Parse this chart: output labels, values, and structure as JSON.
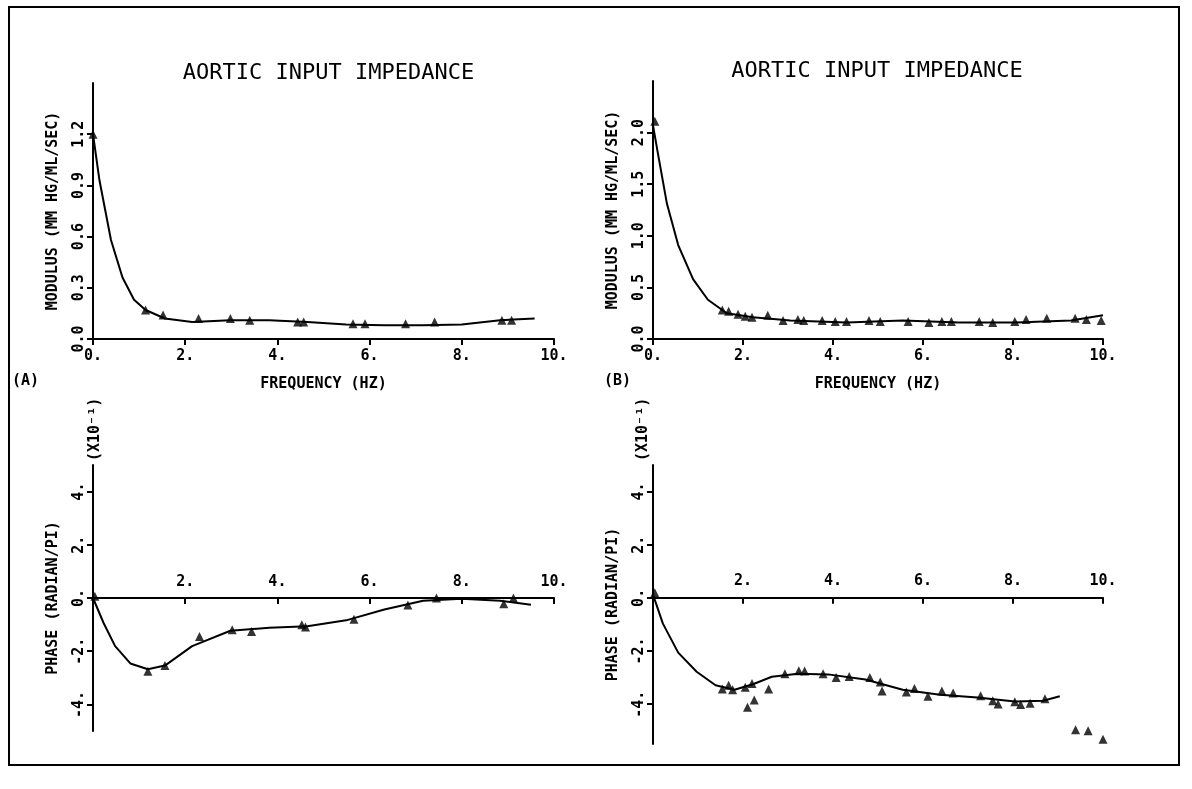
{
  "chart_data": [
    {
      "type": "scatter",
      "title": "AORTIC INPUT IMPEDANCE",
      "xlabel": "FREQUENCY (HZ)",
      "ylabel": "MODULUS (MM HG/ML/SEC)",
      "marker": "triangle",
      "annotations": [
        "(A)"
      ],
      "xlim": [
        0,
        10
      ],
      "xticks": [
        {
          "value": 0,
          "label": "0."
        },
        {
          "value": 2,
          "label": "2."
        },
        {
          "value": 4,
          "label": "4."
        },
        {
          "value": 6,
          "label": "6."
        },
        {
          "value": 8,
          "label": "8."
        },
        {
          "value": 10,
          "label": "10."
        }
      ],
      "ylim": [
        0,
        1.5
      ],
      "yticks": [
        {
          "value": 0,
          "label": "0.0"
        },
        {
          "value": 0.3,
          "label": "0.3"
        },
        {
          "value": 0.6,
          "label": "0.6"
        },
        {
          "value": 0.9,
          "label": "0.9"
        },
        {
          "value": 1.2,
          "label": "1.2"
        }
      ],
      "series": [
        {
          "color": "#000000",
          "x": [
            0,
            1.14,
            1.52,
            2.29,
            2.98,
            3.4,
            4.44,
            4.57,
            5.64,
            5.9,
            6.78,
            7.41,
            8.87,
            9.08
          ],
          "values": [
            1.2,
            0.17,
            0.14,
            0.12,
            0.12,
            0.11,
            0.1,
            0.1,
            0.09,
            0.09,
            0.09,
            0.1,
            0.11,
            0.11
          ]
        },
        {
          "type": "line",
          "marker": "none",
          "color": "#000000",
          "x": [
            0,
            0.14,
            0.39,
            0.64,
            0.89,
            1.14,
            1.56,
            2.15,
            2.98,
            3.82,
            4.65,
            5.49,
            6.32,
            7.16,
            8.0,
            8.83,
            9.58
          ],
          "values": [
            1.2,
            0.93,
            0.58,
            0.36,
            0.23,
            0.17,
            0.12,
            0.1,
            0.11,
            0.11,
            0.1,
            0.085,
            0.08,
            0.08,
            0.085,
            0.11,
            0.12
          ]
        }
      ]
    },
    {
      "type": "scatter",
      "title": "AORTIC INPUT IMPEDANCE",
      "xlabel": "FREQUENCY (HZ)",
      "ylabel": "MODULUS (MM HG/ML/SEC)",
      "marker": "triangle",
      "annotations": [
        "(B)"
      ],
      "xlim": [
        0,
        10
      ],
      "xticks": [
        {
          "value": 0,
          "label": "0."
        },
        {
          "value": 2,
          "label": "2."
        },
        {
          "value": 4,
          "label": "4."
        },
        {
          "value": 6,
          "label": "6."
        },
        {
          "value": 8,
          "label": "8."
        },
        {
          "value": 10,
          "label": "10."
        }
      ],
      "ylim": [
        0,
        2.5
      ],
      "yticks": [
        {
          "value": 0,
          "label": "0.0"
        },
        {
          "value": 0.5,
          "label": "0.5"
        },
        {
          "value": 1,
          "label": "1.0"
        },
        {
          "value": 1.5,
          "label": "1.5"
        },
        {
          "value": 2,
          "label": "2.0"
        }
      ],
      "series": [
        {
          "color": "#000000",
          "x": [
            0.04,
            1.54,
            1.68,
            1.89,
            2.05,
            2.2,
            2.55,
            2.89,
            3.22,
            3.35,
            3.76,
            4.05,
            4.3,
            4.8,
            5.05,
            5.67,
            6.13,
            6.42,
            6.63,
            7.25,
            7.55,
            8.04,
            8.29,
            8.75,
            9.38,
            9.63,
            9.96
          ],
          "values": [
            2.11,
            0.28,
            0.27,
            0.24,
            0.22,
            0.21,
            0.23,
            0.18,
            0.19,
            0.18,
            0.18,
            0.17,
            0.17,
            0.18,
            0.17,
            0.17,
            0.16,
            0.17,
            0.17,
            0.17,
            0.16,
            0.17,
            0.19,
            0.2,
            0.2,
            0.19,
            0.18
          ]
        },
        {
          "type": "line",
          "marker": "none",
          "color": "#000000",
          "x": [
            0,
            0.1,
            0.31,
            0.56,
            0.89,
            1.22,
            1.64,
            2.22,
            3.05,
            4.3,
            5.55,
            6.8,
            8.04,
            9.29,
            10
          ],
          "values": [
            2.07,
            1.82,
            1.31,
            0.91,
            0.58,
            0.38,
            0.25,
            0.21,
            0.18,
            0.16,
            0.18,
            0.16,
            0.16,
            0.18,
            0.23
          ]
        }
      ]
    },
    {
      "type": "scatter",
      "ylabel": "PHASE (RADIAN/PI)",
      "marker": "triangle",
      "annotations": [
        "(X10⁻¹)"
      ],
      "xlim": [
        0,
        10
      ],
      "xticks": [
        {
          "value": 2,
          "label": "2."
        },
        {
          "value": 4,
          "label": "4."
        },
        {
          "value": 6,
          "label": "6."
        },
        {
          "value": 8,
          "label": "8."
        },
        {
          "value": 10,
          "label": "10."
        }
      ],
      "ylim": [
        -5,
        5
      ],
      "yticks": [
        {
          "value": -4,
          "label": "-4."
        },
        {
          "value": -2,
          "label": "-2."
        },
        {
          "value": 0,
          "label": "0."
        },
        {
          "value": 2,
          "label": "2."
        },
        {
          "value": 4,
          "label": "4."
        }
      ],
      "series": [
        {
          "color": "#000000",
          "x": [
            0.04,
            1.19,
            1.56,
            2.31,
            3.02,
            3.44,
            4.53,
            4.61,
            5.66,
            6.83,
            7.45,
            8.91,
            9.12
          ],
          "values": [
            0.07,
            -2.75,
            -2.54,
            -1.45,
            -1.19,
            -1.26,
            -1.01,
            -1.09,
            -0.8,
            -0.26,
            0,
            -0.22,
            0
          ]
        },
        {
          "type": "line",
          "marker": "none",
          "color": "#000000",
          "x": [
            0,
            0.23,
            0.48,
            0.81,
            1.19,
            1.56,
            2.15,
            2.98,
            3.82,
            4.65,
            5.49,
            6.32,
            7.16,
            8.0,
            8.83,
            9.5
          ],
          "values": [
            0,
            -0.94,
            -1.81,
            -2.46,
            -2.68,
            -2.54,
            -1.81,
            -1.23,
            -1.12,
            -1.06,
            -0.84,
            -0.43,
            -0.1,
            -0.03,
            -0.1,
            -0.25
          ]
        }
      ]
    },
    {
      "type": "scatter",
      "ylabel": "PHASE (RADIAN/PI)",
      "marker": "triangle",
      "annotations": [
        "(X10⁻¹)"
      ],
      "xlim": [
        0,
        10
      ],
      "xticks": [
        {
          "value": 2,
          "label": "2."
        },
        {
          "value": 4,
          "label": "4."
        },
        {
          "value": 6,
          "label": "6."
        },
        {
          "value": 8,
          "label": "8."
        },
        {
          "value": 10,
          "label": "10."
        }
      ],
      "ylim": [
        -5.5,
        5
      ],
      "yticks": [
        {
          "value": -4,
          "label": "-4."
        },
        {
          "value": -2,
          "label": "-2."
        },
        {
          "value": 0,
          "label": "0."
        },
        {
          "value": 2,
          "label": "2."
        },
        {
          "value": 4,
          "label": "4."
        }
      ],
      "series": [
        {
          "color": "#000000",
          "x": [
            0.04,
            1.54,
            1.68,
            1.77,
            2.05,
            2.2,
            2.1,
            2.25,
            2.57,
            2.93,
            3.24,
            3.37,
            3.78,
            4.07,
            4.36,
            4.82,
            5.05,
            5.09,
            5.63,
            5.81,
            6.11,
            6.42,
            6.67,
            7.28,
            7.55,
            7.67,
            8.04,
            8.17,
            8.38,
            8.71,
            9.39,
            9.67,
            10
          ],
          "values": [
            0.19,
            -3.43,
            -3.29,
            -3.46,
            -3.36,
            -3.22,
            -4.12,
            -3.84,
            -3.43,
            -2.86,
            -2.74,
            -2.75,
            -2.86,
            -3.0,
            -2.96,
            -3.0,
            -3.17,
            -3.51,
            -3.54,
            -3.41,
            -3.7,
            -3.51,
            -3.58,
            -3.68,
            -3.87,
            -3.99,
            -3.91,
            -4.01,
            -3.97,
            -3.8,
            -4.96,
            -5.0,
            -5.32
          ]
        },
        {
          "type": "line",
          "marker": "none",
          "color": "#000000",
          "x": [
            0,
            0.22,
            0.56,
            0.97,
            1.39,
            1.81,
            2.22,
            2.64,
            3.22,
            3.89,
            4.72,
            5.55,
            6.38,
            7.21,
            8.04,
            8.67,
            9.04
          ],
          "values": [
            0.12,
            -0.97,
            -2.06,
            -2.78,
            -3.29,
            -3.46,
            -3.25,
            -2.97,
            -2.86,
            -2.88,
            -3.07,
            -3.46,
            -3.65,
            -3.75,
            -3.9,
            -3.87,
            -3.7
          ]
        }
      ]
    }
  ]
}
